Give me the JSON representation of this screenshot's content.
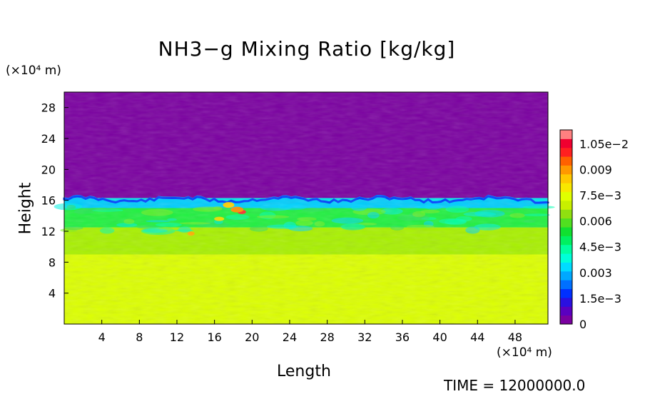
{
  "chart_data": {
    "type": "heatmap",
    "title": "NH3−g Mixing Ratio [kg/kg]",
    "xlabel": "Length",
    "ylabel": "Height",
    "x_unit": "(×10⁴ m)",
    "y_unit": "(×10⁴ m)",
    "xlim": [
      0,
      51.5
    ],
    "ylim": [
      0,
      30
    ],
    "x_ticks": [
      4,
      8,
      12,
      16,
      20,
      24,
      28,
      32,
      36,
      40,
      44,
      48
    ],
    "y_ticks": [
      4,
      8,
      12,
      16,
      20,
      24,
      28
    ],
    "grid": false,
    "colorbar": {
      "labels": [
        "0",
        "1.5e−3",
        "0.003",
        "4.5e−3",
        "0.006",
        "7.5e−3",
        "0.009",
        "1.05e−2"
      ],
      "label_values": [
        0,
        0.0015,
        0.003,
        0.0045,
        0.006,
        0.0075,
        0.009,
        0.0105
      ],
      "range": [
        0,
        0.0113
      ],
      "colors": [
        "#7a00a0",
        "#5a00c0",
        "#2a10e0",
        "#0030ff",
        "#0070ff",
        "#00a8ff",
        "#00dcff",
        "#00ffd8",
        "#00ffa0",
        "#00f060",
        "#10e030",
        "#50e020",
        "#90e010",
        "#c8f000",
        "#e0ff00",
        "#f8e800",
        "#ffc800",
        "#ff9800",
        "#ff6000",
        "#ff2020",
        "#f00030",
        "#ff8080"
      ]
    },
    "layers": [
      {
        "y_range": [
          0,
          9
        ],
        "value": 0.0078,
        "color": "#dcff00"
      },
      {
        "y_range": [
          9,
          12.5
        ],
        "value": 0.0069,
        "color": "#a8f000"
      },
      {
        "y_range": [
          12.5,
          15
        ],
        "value": 0.0055,
        "color": "#20f040"
      },
      {
        "y_range": [
          15,
          16.3
        ],
        "value": 0.0035,
        "color": "#00e8e8"
      },
      {
        "y_range": [
          16.3,
          30
        ],
        "value": 0.0,
        "color": "#7a00a0"
      }
    ]
  },
  "footer": {
    "time": "TIME = 12000000.0"
  }
}
